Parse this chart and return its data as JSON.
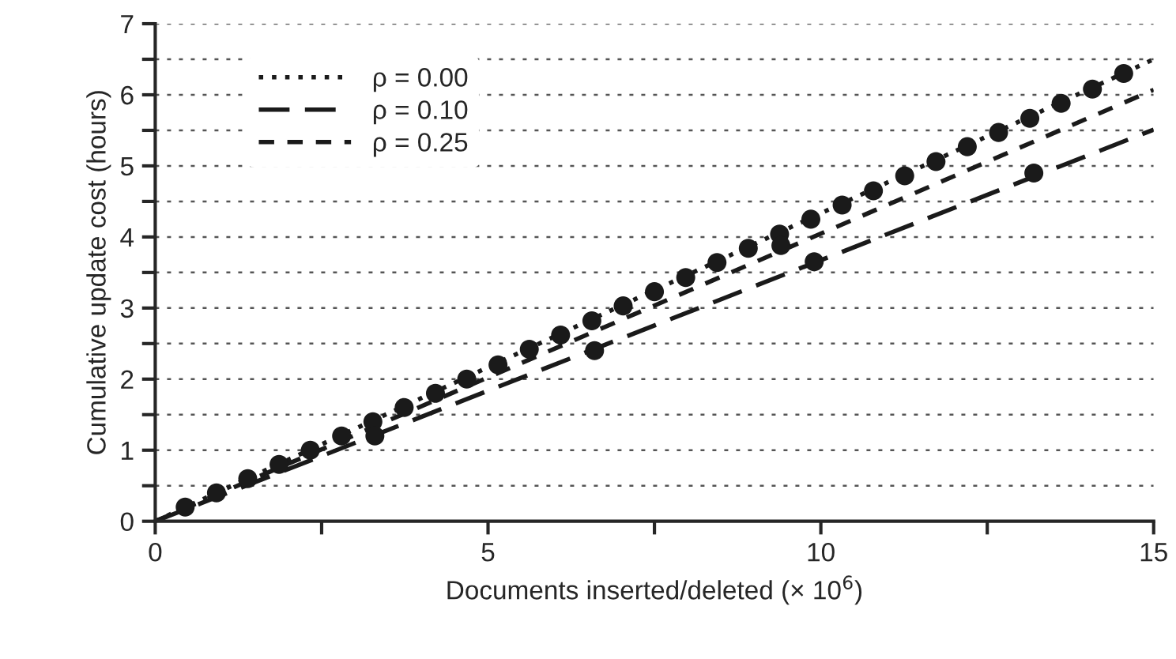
{
  "chart_data": {
    "type": "line",
    "xlabel": "Documents inserted/deleted (× 10$^{6}$)",
    "ylabel": "Cumulative update cost (hours)",
    "series": [
      {
        "name": "ρ = 0.00",
        "color": "#1a1a1a",
        "line_style": "dotted",
        "marker": "none",
        "x": [
          0,
          15
        ],
        "values": [
          0,
          6.5
        ]
      },
      {
        "name": "ρ = 0.10",
        "color": "#1a1a1a",
        "line_style": "dashed",
        "marker": "none",
        "x": [
          0,
          15
        ],
        "values": [
          0,
          5.51
        ]
      },
      {
        "name": "ρ = 0.25",
        "color": "#1a1a1a",
        "line_style": "short-dashed",
        "marker": "none",
        "x": [
          0,
          15
        ],
        "values": [
          0,
          6.07
        ]
      },
      {
        "type": "scatter",
        "color": "#1a1a1a",
        "marker": "circle",
        "x": [
          0.45,
          0.92,
          1.39,
          1.86,
          2.33,
          2.8,
          3.27,
          3.74,
          4.21,
          4.68,
          5.15,
          5.62,
          6.09,
          6.56,
          7.03,
          7.5,
          7.97,
          8.44,
          8.91,
          9.38,
          9.85,
          10.32,
          10.79,
          11.26,
          11.73,
          12.2,
          12.67,
          13.14,
          13.61,
          14.08,
          14.55,
          3.3,
          6.6,
          9.4,
          9.9,
          13.2
        ],
        "values": [
          0.2,
          0.4,
          0.6,
          0.8,
          1.0,
          1.2,
          1.4,
          1.6,
          1.8,
          2.0,
          2.2,
          2.42,
          2.62,
          2.82,
          3.03,
          3.23,
          3.43,
          3.64,
          3.84,
          4.04,
          4.25,
          4.45,
          4.65,
          4.86,
          5.06,
          5.27,
          5.47,
          5.67,
          5.88,
          6.08,
          6.3,
          1.2,
          2.4,
          3.88,
          3.65,
          4.9
        ]
      }
    ],
    "xlim": [
      0,
      15
    ],
    "xticks": [
      0,
      {
        "value": 2.5,
        "label": null
      },
      5,
      {
        "value": 7.5,
        "label": null
      },
      10,
      {
        "value": 12.5,
        "label": null
      },
      15
    ],
    "ylim": [
      0,
      7
    ],
    "yticks": [
      0,
      {
        "value": 0.5,
        "label": null
      },
      1,
      {
        "value": 1.5,
        "label": null
      },
      2,
      {
        "value": 2.5,
        "label": null
      },
      3,
      {
        "value": 3.5,
        "label": null
      },
      4,
      {
        "value": 4.5,
        "label": null
      },
      5,
      {
        "value": 5.5,
        "label": null
      },
      6,
      {
        "value": 6.5,
        "label": null
      },
      7
    ],
    "grid": "y",
    "legend": "top left"
  }
}
